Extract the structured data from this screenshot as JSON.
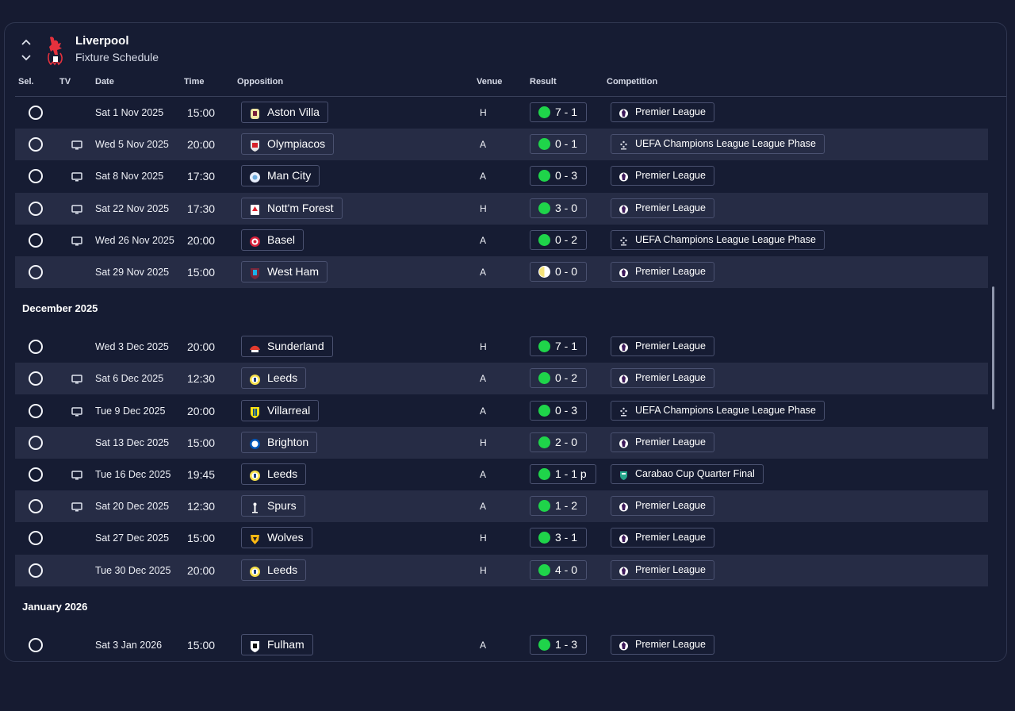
{
  "header": {
    "team": "Liverpool",
    "subtitle": "Fixture Schedule"
  },
  "columns": {
    "sel": "Sel.",
    "tv": "TV",
    "date": "Date",
    "time": "Time",
    "opposition": "Opposition",
    "venue": "Venue",
    "result": "Result",
    "competition": "Competition"
  },
  "colors": {
    "win": "#1fd44a",
    "draw_light": "#f4e27a",
    "background": "#161b31",
    "row_alt": "#262c45"
  },
  "rows": [
    {
      "kind": "fixture",
      "tv": false,
      "date": "Sat 1 Nov 2025",
      "time": "15:00",
      "opp": "Aston Villa",
      "badge": "aston-villa-badge",
      "venue": "H",
      "result": "7 - 1",
      "outcome": "win",
      "comp": "Premier League",
      "comp_icon": "premier-league-icon"
    },
    {
      "kind": "fixture",
      "tv": true,
      "date": "Wed 5 Nov 2025",
      "time": "20:00",
      "opp": "Olympiacos",
      "badge": "olympiacos-badge",
      "venue": "A",
      "result": "0 - 1",
      "outcome": "win",
      "comp": "UEFA Champions League League Phase",
      "comp_icon": "champions-league-icon"
    },
    {
      "kind": "fixture",
      "tv": true,
      "date": "Sat 8 Nov 2025",
      "time": "17:30",
      "opp": "Man City",
      "badge": "man-city-badge",
      "venue": "A",
      "result": "0 - 3",
      "outcome": "win",
      "comp": "Premier League",
      "comp_icon": "premier-league-icon"
    },
    {
      "kind": "fixture",
      "tv": true,
      "date": "Sat 22 Nov 2025",
      "time": "17:30",
      "opp": "Nott'm Forest",
      "badge": "nottm-forest-badge",
      "venue": "H",
      "result": "3 - 0",
      "outcome": "win",
      "comp": "Premier League",
      "comp_icon": "premier-league-icon"
    },
    {
      "kind": "fixture",
      "tv": true,
      "date": "Wed 26 Nov 2025",
      "time": "20:00",
      "opp": "Basel",
      "badge": "basel-badge",
      "venue": "A",
      "result": "0 - 2",
      "outcome": "win",
      "comp": "UEFA Champions League League Phase",
      "comp_icon": "champions-league-icon"
    },
    {
      "kind": "fixture",
      "tv": false,
      "date": "Sat 29 Nov 2025",
      "time": "15:00",
      "opp": "West Ham",
      "badge": "west-ham-badge",
      "venue": "A",
      "result": "0 - 0",
      "outcome": "draw",
      "comp": "Premier League",
      "comp_icon": "premier-league-icon"
    },
    {
      "kind": "month",
      "label": "December 2025"
    },
    {
      "kind": "fixture",
      "tv": false,
      "date": "Wed 3 Dec 2025",
      "time": "20:00",
      "opp": "Sunderland",
      "badge": "sunderland-badge",
      "venue": "H",
      "result": "7 - 1",
      "outcome": "win",
      "comp": "Premier League",
      "comp_icon": "premier-league-icon"
    },
    {
      "kind": "fixture",
      "tv": true,
      "date": "Sat 6 Dec 2025",
      "time": "12:30",
      "opp": "Leeds",
      "badge": "leeds-badge",
      "venue": "A",
      "result": "0 - 2",
      "outcome": "win",
      "comp": "Premier League",
      "comp_icon": "premier-league-icon"
    },
    {
      "kind": "fixture",
      "tv": true,
      "date": "Tue 9 Dec 2025",
      "time": "20:00",
      "opp": "Villarreal",
      "badge": "villarreal-badge",
      "venue": "A",
      "result": "0 - 3",
      "outcome": "win",
      "comp": "UEFA Champions League League Phase",
      "comp_icon": "champions-league-icon"
    },
    {
      "kind": "fixture",
      "tv": false,
      "date": "Sat 13 Dec 2025",
      "time": "15:00",
      "opp": "Brighton",
      "badge": "brighton-badge",
      "venue": "H",
      "result": "2 - 0",
      "outcome": "win",
      "comp": "Premier League",
      "comp_icon": "premier-league-icon"
    },
    {
      "kind": "fixture",
      "tv": true,
      "date": "Tue 16 Dec 2025",
      "time": "19:45",
      "opp": "Leeds",
      "badge": "leeds-badge",
      "venue": "A",
      "result": "1 - 1 p",
      "outcome": "win",
      "comp": "Carabao Cup Quarter Final",
      "comp_icon": "carabao-cup-icon"
    },
    {
      "kind": "fixture",
      "tv": true,
      "date": "Sat 20 Dec 2025",
      "time": "12:30",
      "opp": "Spurs",
      "badge": "spurs-badge",
      "venue": "A",
      "result": "1 - 2",
      "outcome": "win",
      "comp": "Premier League",
      "comp_icon": "premier-league-icon"
    },
    {
      "kind": "fixture",
      "tv": false,
      "date": "Sat 27 Dec 2025",
      "time": "15:00",
      "opp": "Wolves",
      "badge": "wolves-badge",
      "venue": "H",
      "result": "3 - 1",
      "outcome": "win",
      "comp": "Premier League",
      "comp_icon": "premier-league-icon"
    },
    {
      "kind": "fixture",
      "tv": false,
      "date": "Tue 30 Dec 2025",
      "time": "20:00",
      "opp": "Leeds",
      "badge": "leeds-badge",
      "venue": "H",
      "result": "4 - 0",
      "outcome": "win",
      "comp": "Premier League",
      "comp_icon": "premier-league-icon"
    },
    {
      "kind": "month",
      "label": "January 2026"
    },
    {
      "kind": "fixture",
      "tv": false,
      "date": "Sat 3 Jan 2026",
      "time": "15:00",
      "opp": "Fulham",
      "badge": "fulham-badge",
      "venue": "A",
      "result": "1 - 3",
      "outcome": "win",
      "comp": "Premier League",
      "comp_icon": "premier-league-icon"
    }
  ]
}
